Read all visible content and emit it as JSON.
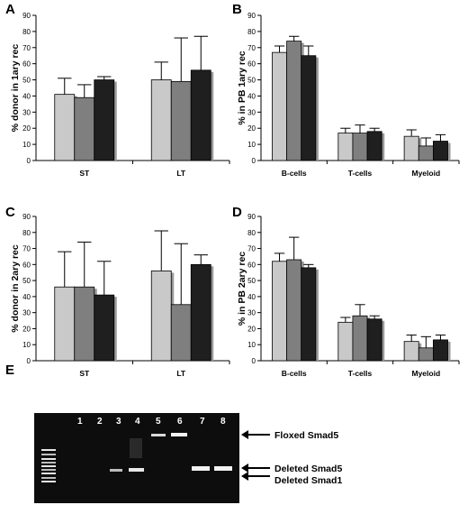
{
  "colors": {
    "bar_shades": [
      "#c9c9c9",
      "#7f7f7f",
      "#1f1f1f"
    ],
    "bar_shadow": "#9a9a9a",
    "gel_bg": "#0d0d0d",
    "band": "#f2f2f2"
  },
  "chart_data": [
    {
      "id": "A",
      "panel_letter": "A",
      "type": "bar",
      "ylabel": "% donor in 1ary rec",
      "ylim": [
        0,
        90
      ],
      "yticks": [
        0,
        10,
        20,
        30,
        40,
        50,
        60,
        70,
        80,
        90
      ],
      "categories": [
        "ST",
        "LT"
      ],
      "series": [
        {
          "values": [
            41,
            50
          ],
          "errors": [
            10,
            11
          ]
        },
        {
          "values": [
            39,
            49
          ],
          "errors": [
            8,
            27
          ]
        },
        {
          "values": [
            50,
            56
          ],
          "errors": [
            2,
            21
          ]
        }
      ],
      "grid": false
    },
    {
      "id": "B",
      "panel_letter": "B",
      "type": "bar",
      "ylabel": "% in PB 1ary rec",
      "ylim": [
        0,
        90
      ],
      "yticks": [
        0,
        10,
        20,
        30,
        40,
        50,
        60,
        70,
        80,
        90
      ],
      "categories": [
        "B-cells",
        "T-cells",
        "Myeloid"
      ],
      "series": [
        {
          "values": [
            67,
            17,
            15
          ],
          "errors": [
            4,
            3,
            4
          ]
        },
        {
          "values": [
            74,
            17,
            9
          ],
          "errors": [
            3,
            5,
            5
          ]
        },
        {
          "values": [
            65,
            18,
            12
          ],
          "errors": [
            6,
            2,
            4
          ]
        }
      ],
      "grid": false
    },
    {
      "id": "C",
      "panel_letter": "C",
      "type": "bar",
      "ylabel": "% donor in 2ary rec",
      "ylim": [
        0,
        90
      ],
      "yticks": [
        0,
        10,
        20,
        30,
        40,
        50,
        60,
        70,
        80,
        90
      ],
      "categories": [
        "ST",
        "LT"
      ],
      "series": [
        {
          "values": [
            46,
            56
          ],
          "errors": [
            22,
            25
          ]
        },
        {
          "values": [
            46,
            35
          ],
          "errors": [
            28,
            38
          ]
        },
        {
          "values": [
            41,
            60
          ],
          "errors": [
            21,
            6
          ]
        }
      ],
      "grid": false
    },
    {
      "id": "D",
      "panel_letter": "D",
      "type": "bar",
      "ylabel": "% in PB 2ary rec",
      "ylim": [
        0,
        90
      ],
      "yticks": [
        0,
        10,
        20,
        30,
        40,
        50,
        60,
        70,
        80,
        90
      ],
      "categories": [
        "B-cells",
        "T-cells",
        "Myeloid"
      ],
      "series": [
        {
          "values": [
            62,
            24,
            12
          ],
          "errors": [
            5,
            3,
            4
          ]
        },
        {
          "values": [
            63,
            28,
            8
          ],
          "errors": [
            14,
            7,
            7
          ]
        },
        {
          "values": [
            58,
            26,
            13
          ],
          "errors": [
            2,
            2,
            3
          ]
        }
      ],
      "grid": false
    }
  ],
  "gel": {
    "panel_letter": "E",
    "lanes": [
      "1",
      "2",
      "3",
      "4",
      "5",
      "6",
      "7",
      "8"
    ],
    "labels": [
      "Floxed Smad5",
      "Deleted Smad5",
      "Deleted Smad1"
    ]
  }
}
